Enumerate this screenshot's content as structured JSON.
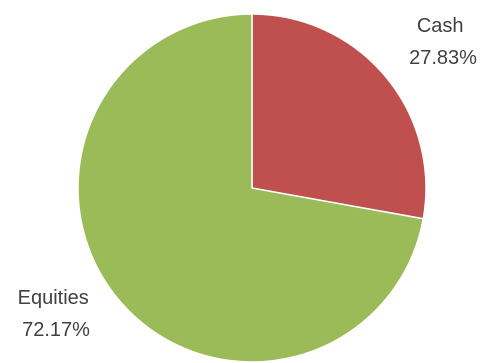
{
  "chart_data": {
    "type": "pie",
    "slices": [
      {
        "label": "Cash",
        "value_label": "27.83%",
        "value": 27.83,
        "color": "#c0504d"
      },
      {
        "label": "Equities",
        "value_label": "72.17%",
        "value": 72.17,
        "color": "#9bbb59"
      }
    ],
    "start_angle_deg": 0,
    "direction": "clockwise"
  }
}
